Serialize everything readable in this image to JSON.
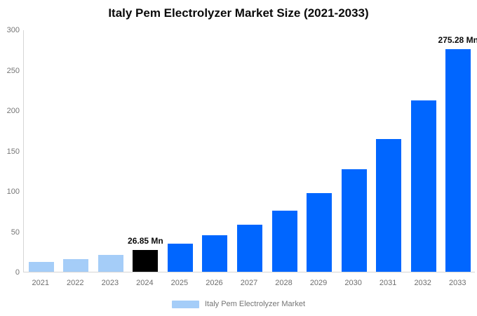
{
  "title": "Italy Pem Electrolyzer Market Size (2021-2033)",
  "legend": {
    "label": "Italy Pem Electrolyzer Market",
    "swatch_color": "#a5cdf8"
  },
  "colors": {
    "historical_bar": "#a5cdf8",
    "base_year_bar": "#000000",
    "forecast_bar": "#0066ff",
    "axis_line": "#d6d6d6",
    "tick_text": "#757575",
    "value_label_text": "#0a0a0a"
  },
  "chart_data": {
    "type": "bar",
    "title": "Italy Pem Electrolyzer Market Size (2021-2033)",
    "xlabel": "",
    "ylabel": "",
    "categories": [
      "2021",
      "2022",
      "2023",
      "2024",
      "2025",
      "2026",
      "2027",
      "2028",
      "2029",
      "2030",
      "2031",
      "2032",
      "2033"
    ],
    "values": [
      12,
      15.5,
      20.5,
      26.85,
      34.8,
      45,
      58.3,
      75.5,
      97.8,
      126.6,
      164,
      212.4,
      275.28
    ],
    "bar_colors": [
      "#a5cdf8",
      "#a5cdf8",
      "#a5cdf8",
      "#000000",
      "#0066ff",
      "#0066ff",
      "#0066ff",
      "#0066ff",
      "#0066ff",
      "#0066ff",
      "#0066ff",
      "#0066ff",
      "#0066ff"
    ],
    "annotations": [
      {
        "category": "2024",
        "text": "26.85 Mn"
      },
      {
        "category": "2033",
        "text": "275.28 Mn"
      }
    ],
    "ylim": [
      0,
      300
    ],
    "yticks": [
      0,
      50,
      100,
      150,
      200,
      250,
      300
    ],
    "grid": false,
    "legend_position": "bottom",
    "legend_entries": [
      "Italy Pem Electrolyzer Market"
    ]
  }
}
